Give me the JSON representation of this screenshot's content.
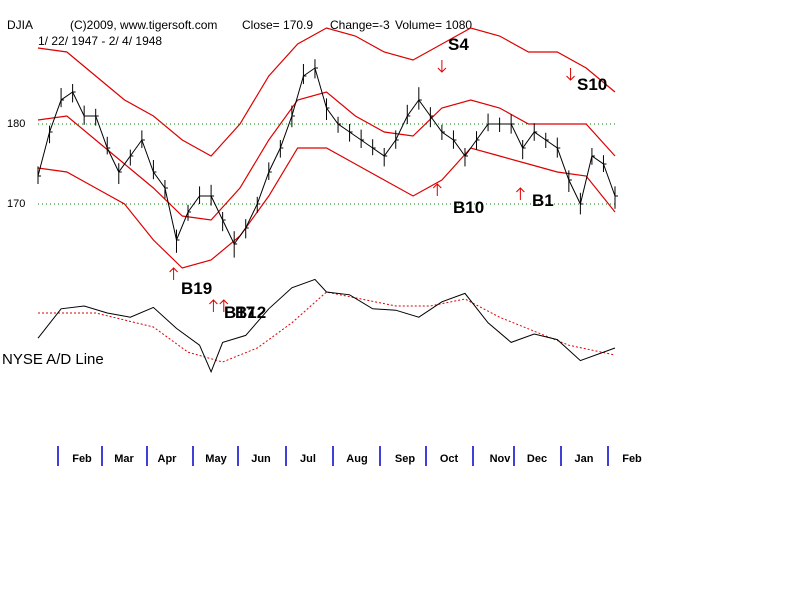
{
  "header": {
    "ticker": "DJIA",
    "copyright": "(C)2009, www.tigersoft.com",
    "close": "Close=  170.9",
    "change": "Change=-3",
    "volume": "Volume= 1080",
    "date_range": "1/ 22/ 1947 - 2/ 4/ 1948"
  },
  "colors": {
    "price": "#000000",
    "band": "#dd0000",
    "grid": "#008000",
    "arrow": "#dd0000",
    "month_tick": "#0000cc",
    "ad_ma": "#dd0000"
  },
  "chart_data": {
    "type": "line",
    "ylim": [
      160,
      190
    ],
    "yticks": [
      {
        "value": 170,
        "label": "170"
      },
      {
        "value": 180,
        "label": "180"
      }
    ],
    "x_domain": [
      0,
      100
    ],
    "months": [
      "Feb",
      "Mar",
      "Apr",
      "May",
      "Jun",
      "Jul",
      "Aug",
      "Sep",
      "Oct",
      "Nov",
      "Dec",
      "Jan",
      "Feb"
    ],
    "price": {
      "x": [
        0,
        2,
        4,
        6,
        8,
        10,
        12,
        14,
        16,
        18,
        20,
        22,
        24,
        26,
        28,
        30,
        32,
        34,
        36,
        38,
        40,
        42,
        44,
        46,
        48,
        50,
        52,
        54,
        56,
        58,
        60,
        62,
        64,
        66,
        68,
        70,
        72,
        74,
        76,
        78,
        80,
        82,
        84,
        86,
        88,
        90,
        92,
        94,
        96,
        98,
        100
      ],
      "y": [
        173.5,
        179,
        183,
        184,
        181,
        181,
        177,
        174,
        176,
        178,
        174,
        172,
        165.5,
        169,
        171,
        171,
        168,
        165,
        167,
        170,
        174,
        177,
        181,
        186,
        187,
        182,
        180,
        179,
        178,
        177,
        176,
        178,
        181,
        183,
        181,
        179,
        178,
        176,
        178,
        180,
        180,
        180,
        177,
        179,
        178,
        177,
        173,
        170,
        176,
        175,
        171
      ],
      "high_offsets": [
        1.2,
        0.8,
        1.5,
        1.0,
        1.3,
        0.9,
        1.4,
        1.1,
        0.8,
        1.2,
        1.5,
        1.0,
        1.3,
        0.9,
        1.2,
        1.4,
        1.0,
        1.6,
        1.1,
        0.9,
        1.2,
        1.0,
        1.3,
        1.5,
        1.1,
        1.2,
        0.9,
        1.0,
        1.3,
        1.1,
        1.0,
        1.2,
        1.4,
        1.6,
        1.1,
        0.9,
        1.2,
        1.0,
        1.1,
        1.3,
        0.8,
        1.2,
        1.0,
        1.1,
        0.9,
        1.3,
        1.2,
        1.4,
        1.0,
        1.1,
        1.2
      ],
      "low_offsets": [
        1.0,
        1.4,
        0.9,
        1.3,
        1.1,
        1.2,
        0.8,
        1.5,
        1.2,
        1.0,
        0.9,
        1.3,
        1.6,
        1.1,
        1.0,
        1.2,
        1.4,
        1.7,
        1.3,
        1.1,
        1.0,
        1.2,
        1.4,
        1.0,
        1.3,
        1.5,
        1.1,
        1.2,
        1.0,
        0.9,
        1.3,
        1.1,
        1.0,
        1.2,
        1.4,
        1.0,
        1.1,
        1.3,
        1.2,
        0.9,
        1.0,
        1.2,
        1.4,
        1.1,
        1.0,
        1.2,
        1.5,
        1.3,
        1.1,
        1.0,
        1.6
      ]
    },
    "upper_band": {
      "x": [
        0,
        5,
        10,
        15,
        20,
        25,
        30,
        35,
        40,
        45,
        50,
        55,
        60,
        65,
        70,
        75,
        80,
        85,
        90,
        95,
        100
      ],
      "y": [
        189.5,
        189,
        186,
        183,
        181,
        178,
        176,
        180,
        186,
        190,
        192,
        191,
        189,
        188,
        190,
        192,
        191,
        189,
        189,
        187,
        184
      ]
    },
    "middle_band": {
      "x": [
        0,
        5,
        10,
        15,
        20,
        25,
        30,
        35,
        40,
        45,
        50,
        55,
        60,
        65,
        70,
        75,
        80,
        85,
        90,
        95,
        100
      ],
      "y": [
        180.5,
        181,
        178,
        175,
        172,
        168.5,
        168,
        172,
        178,
        183,
        184,
        181,
        179,
        178.5,
        182,
        183,
        182,
        180,
        180,
        180,
        176
      ]
    },
    "lower_band": {
      "x": [
        0,
        5,
        10,
        15,
        20,
        25,
        30,
        35,
        40,
        45,
        50,
        55,
        60,
        65,
        70,
        75,
        80,
        85,
        90,
        95,
        100
      ],
      "y": [
        174.5,
        174,
        172,
        170,
        165.5,
        162,
        163,
        166,
        171,
        177,
        177,
        175,
        173,
        171,
        173,
        177,
        176,
        175,
        174,
        173.5,
        169
      ]
    },
    "ad_line": {
      "x": [
        0,
        4,
        8,
        12,
        16,
        20,
        24,
        28,
        30,
        32,
        36,
        40,
        44,
        48,
        50,
        54,
        58,
        62,
        66,
        70,
        74,
        78,
        82,
        86,
        90,
        94,
        100
      ],
      "y": [
        37,
        58,
        60,
        55,
        52,
        59,
        44,
        32,
        13,
        34,
        39,
        58,
        73,
        79,
        70,
        68,
        58,
        57,
        52,
        63,
        69,
        48,
        34,
        40,
        36,
        21,
        30
      ]
    },
    "ad_ma": {
      "x": [
        0,
        10,
        20,
        26,
        32,
        38,
        44,
        50,
        56,
        62,
        68,
        74,
        80,
        86,
        92,
        100
      ],
      "y": [
        55,
        55,
        45,
        27,
        20,
        30,
        48,
        70,
        65,
        60,
        60,
        65,
        52,
        42,
        32,
        25
      ]
    },
    "signals": [
      {
        "label": "S4",
        "type": "sell",
        "x": 70.0,
        "price": 186.5
      },
      {
        "label": "S10",
        "type": "sell",
        "x": 92.3,
        "price": 185.5
      },
      {
        "label": "B10",
        "type": "buy",
        "x": 69.2,
        "price": 172.5
      },
      {
        "label": "B1",
        "type": "buy",
        "x": 83.6,
        "price": 172.0
      },
      {
        "label": "B19",
        "type": "buy",
        "x": 23.5,
        "price": 162.0
      },
      {
        "label": "B17",
        "type": "buy",
        "x": 30.4,
        "price": 158.0
      },
      {
        "label": "B12",
        "type": "buy",
        "x": 32.2,
        "price": 158.0
      }
    ],
    "signal_text": [
      "S4",
      "S10",
      "B10",
      "B1",
      "B19",
      "B17",
      "B12"
    ],
    "ad_caption": "NYSE A/D Line"
  }
}
